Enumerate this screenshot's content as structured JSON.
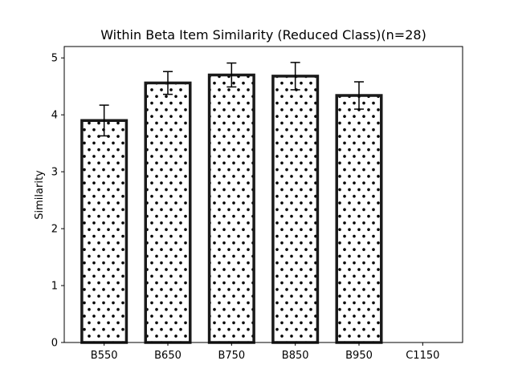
{
  "chart_data": {
    "type": "bar",
    "title": "Within Beta Item Similarity (Reduced Class)(n=28)",
    "xlabel": "",
    "ylabel": "Similarity",
    "categories": [
      "B550",
      "B650",
      "B750",
      "B850",
      "B950",
      "C1150"
    ],
    "values": [
      3.9,
      4.56,
      4.7,
      4.68,
      4.34,
      null
    ],
    "errors": [
      0.27,
      0.2,
      0.21,
      0.24,
      0.24,
      null
    ],
    "ylim": [
      0,
      5.2
    ],
    "yticks": [
      0,
      1,
      2,
      3,
      4,
      5
    ],
    "grid": false,
    "bar_fill": "#ffffff",
    "bar_edge": "#1a1a1a",
    "bar_pattern": "dots",
    "error_color": "#000000"
  }
}
